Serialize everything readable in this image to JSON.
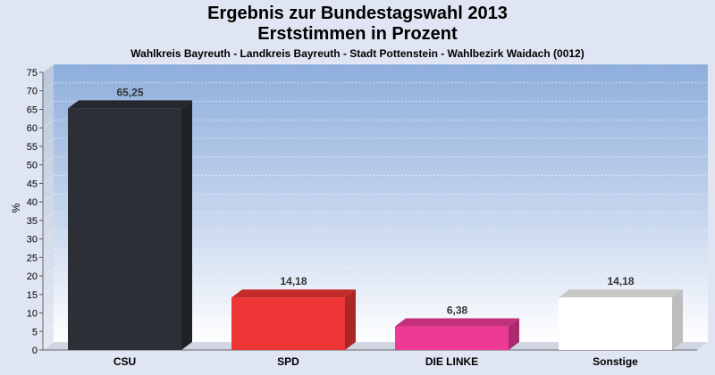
{
  "chart_data": {
    "type": "bar",
    "title": "Ergebnis zur Bundestagswahl 2013",
    "subtitle": "Erststimmen in Prozent",
    "subtitle2": "Wahlkreis Bayreuth - Landkreis Bayreuth - Stadt Pottenstein - Wahlbezirk Waidach (0012)",
    "ylabel": "%",
    "ylim": [
      0,
      75
    ],
    "yticks": [
      0,
      5,
      10,
      15,
      20,
      25,
      30,
      35,
      40,
      45,
      50,
      55,
      60,
      65,
      70,
      75
    ],
    "categories": [
      "CSU",
      "SPD",
      "DIE LINKE",
      "Sonstige"
    ],
    "values": [
      65.25,
      14.18,
      6.38,
      14.18
    ],
    "value_labels": [
      "65,25",
      "14,18",
      "6,38",
      "14,18"
    ],
    "colors": [
      "#2d2f36",
      "#ee3535",
      "#ee3a96",
      "#ffffff"
    ],
    "grid": true
  }
}
